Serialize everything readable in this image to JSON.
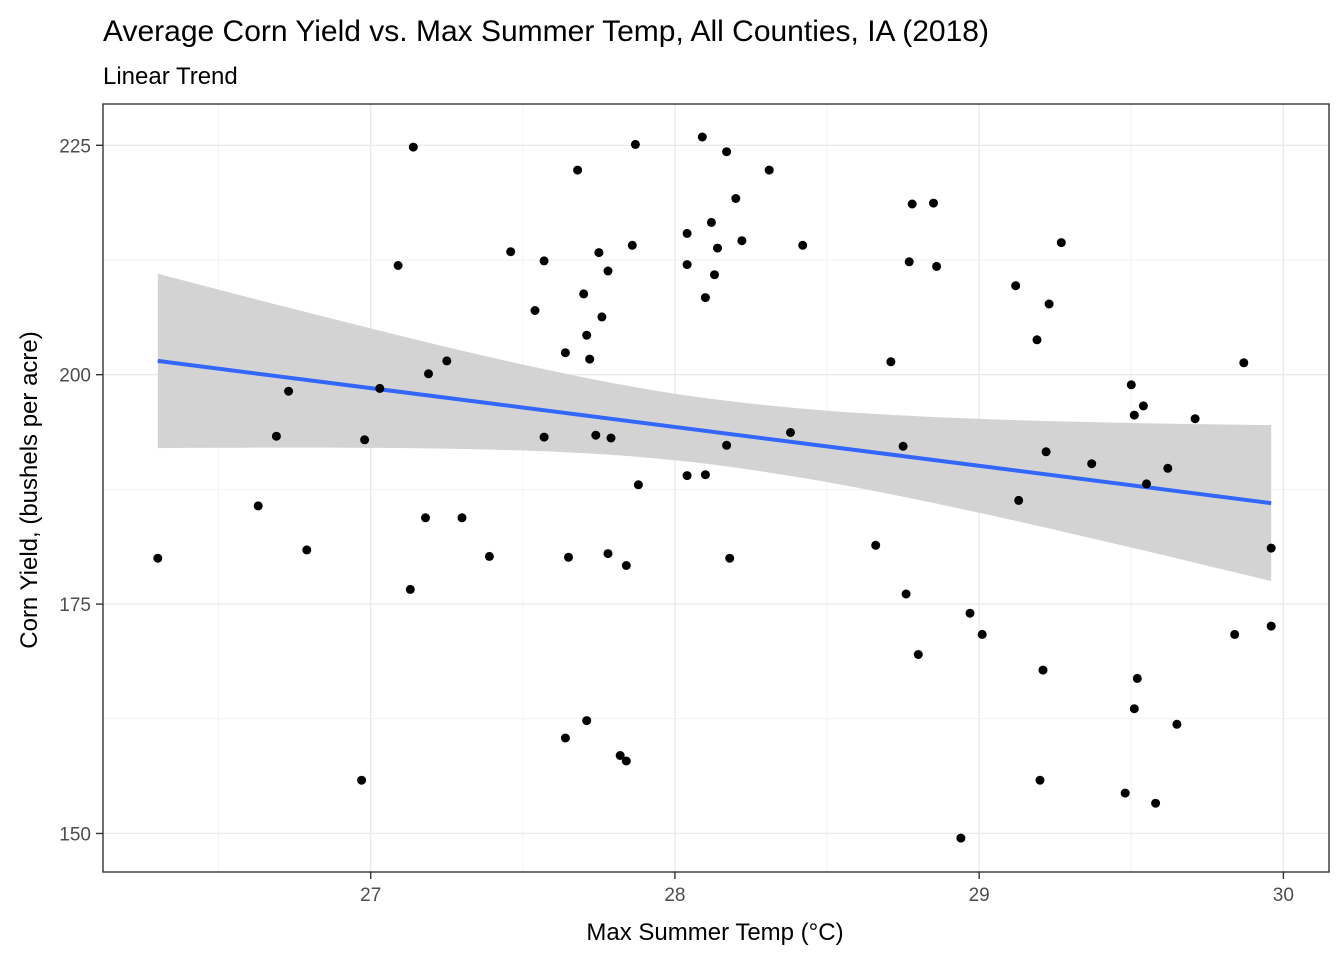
{
  "chart_data": {
    "type": "scatter",
    "title": "Average Corn Yield vs. Max Summer Temp, All Counties, IA (2018)",
    "subtitle": "Linear Trend",
    "xlabel": "Max Summer Temp (°C)",
    "ylabel": "Corn Yield, (bushels per acre)",
    "xlim": [
      26.12,
      30.15
    ],
    "ylim": [
      145.8,
      229.5
    ],
    "x_ticks": [
      27,
      28,
      29,
      30
    ],
    "x_tick_labels": [
      "27",
      "28",
      "29",
      "30"
    ],
    "y_ticks": [
      150,
      175,
      200,
      225
    ],
    "y_tick_labels": [
      "150",
      "175",
      "200",
      "225"
    ],
    "grid": true,
    "points_color": "#000000",
    "trend": {
      "method": "linear",
      "x_range": [
        26.3,
        29.96
      ],
      "y_start": 201.5,
      "y_end": 186.0,
      "ci_start": [
        192.0,
        211.0
      ],
      "ci_end": [
        177.5,
        194.5
      ],
      "line_color": "#3366FF",
      "band_color": "#D3D3D3"
    },
    "points": [
      [
        26.3,
        180.0
      ],
      [
        26.63,
        185.7
      ],
      [
        26.69,
        193.3
      ],
      [
        26.73,
        198.2
      ],
      [
        26.79,
        180.9
      ],
      [
        26.97,
        155.8
      ],
      [
        26.98,
        192.9
      ],
      [
        27.03,
        198.5
      ],
      [
        27.09,
        211.9
      ],
      [
        27.13,
        176.6
      ],
      [
        27.14,
        224.8
      ],
      [
        27.18,
        184.4
      ],
      [
        27.19,
        200.1
      ],
      [
        27.25,
        201.5
      ],
      [
        27.3,
        184.4
      ],
      [
        27.39,
        180.2
      ],
      [
        27.46,
        213.4
      ],
      [
        27.54,
        207.0
      ],
      [
        27.57,
        193.2
      ],
      [
        27.57,
        212.4
      ],
      [
        27.64,
        202.4
      ],
      [
        27.64,
        160.4
      ],
      [
        27.65,
        180.1
      ],
      [
        27.68,
        222.3
      ],
      [
        27.7,
        208.8
      ],
      [
        27.71,
        204.3
      ],
      [
        27.71,
        162.3
      ],
      [
        27.72,
        201.7
      ],
      [
        27.74,
        193.4
      ],
      [
        27.75,
        213.3
      ],
      [
        27.76,
        206.3
      ],
      [
        27.78,
        211.3
      ],
      [
        27.78,
        180.5
      ],
      [
        27.79,
        193.1
      ],
      [
        27.82,
        158.5
      ],
      [
        27.84,
        157.9
      ],
      [
        27.84,
        179.2
      ],
      [
        27.86,
        214.1
      ],
      [
        27.87,
        225.1
      ],
      [
        27.88,
        188.0
      ],
      [
        28.04,
        215.4
      ],
      [
        28.04,
        212.0
      ],
      [
        28.04,
        189.0
      ],
      [
        28.09,
        225.9
      ],
      [
        28.1,
        208.4
      ],
      [
        28.1,
        189.1
      ],
      [
        28.12,
        216.6
      ],
      [
        28.13,
        210.9
      ],
      [
        28.14,
        213.8
      ],
      [
        28.17,
        192.3
      ],
      [
        28.17,
        224.3
      ],
      [
        28.18,
        180.0
      ],
      [
        28.2,
        219.2
      ],
      [
        28.22,
        214.6
      ],
      [
        28.31,
        222.3
      ],
      [
        28.38,
        193.7
      ],
      [
        28.42,
        214.1
      ],
      [
        28.66,
        181.4
      ],
      [
        28.71,
        201.4
      ],
      [
        28.75,
        192.2
      ],
      [
        28.76,
        176.1
      ],
      [
        28.77,
        212.3
      ],
      [
        28.78,
        218.6
      ],
      [
        28.8,
        169.5
      ],
      [
        28.85,
        218.7
      ],
      [
        28.86,
        211.8
      ],
      [
        28.94,
        149.5
      ],
      [
        28.97,
        174.0
      ],
      [
        29.01,
        171.7
      ],
      [
        29.12,
        209.7
      ],
      [
        29.13,
        186.3
      ],
      [
        29.19,
        203.8
      ],
      [
        29.2,
        155.8
      ],
      [
        29.21,
        167.8
      ],
      [
        29.22,
        191.6
      ],
      [
        29.23,
        207.7
      ],
      [
        29.27,
        214.4
      ],
      [
        29.37,
        190.3
      ],
      [
        29.48,
        154.4
      ],
      [
        29.5,
        198.9
      ],
      [
        29.51,
        163.6
      ],
      [
        29.51,
        195.6
      ],
      [
        29.52,
        166.9
      ],
      [
        29.54,
        196.6
      ],
      [
        29.55,
        188.1
      ],
      [
        29.58,
        153.3
      ],
      [
        29.62,
        189.8
      ],
      [
        29.65,
        161.9
      ],
      [
        29.71,
        195.2
      ],
      [
        29.84,
        171.7
      ],
      [
        29.87,
        201.3
      ],
      [
        29.96,
        181.1
      ],
      [
        29.96,
        172.6
      ]
    ]
  }
}
